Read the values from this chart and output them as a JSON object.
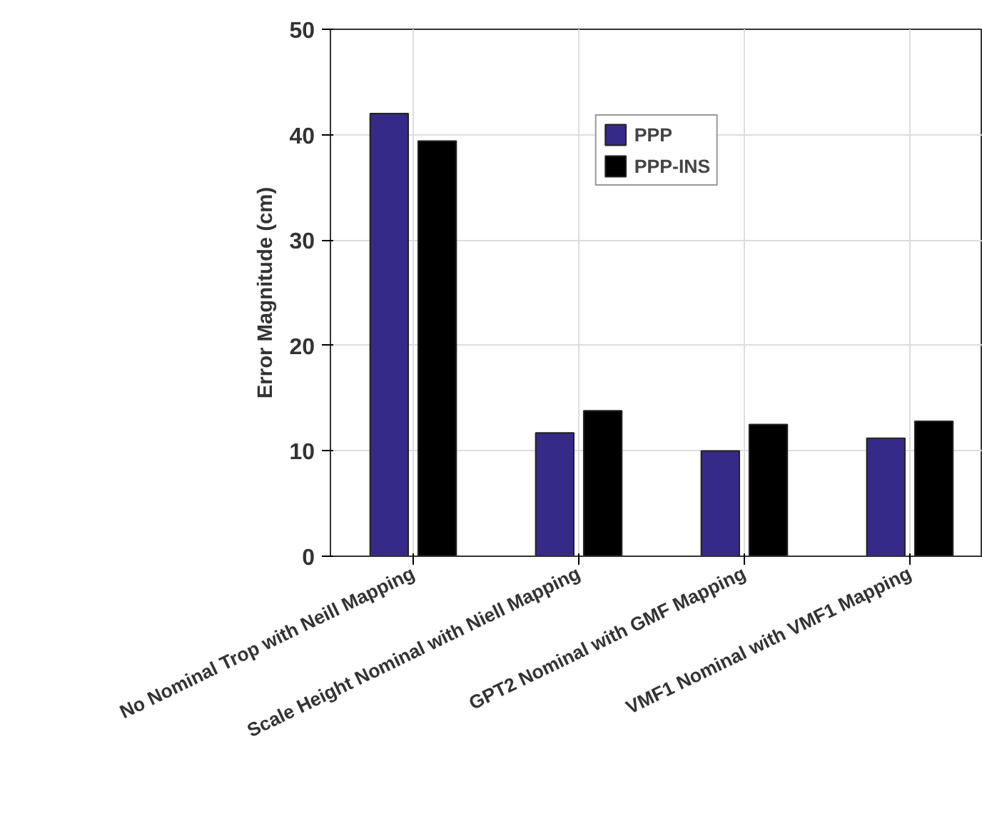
{
  "chart_data": {
    "type": "bar",
    "ylabel": "Error Magnitude (cm)",
    "categories": [
      "No Nominal Trop with Neill Mapping",
      "Scale Height Nominal with Niell Mapping",
      "GPT2 Nominal with GMF Mapping",
      "VMF1 Nominal with VMF1 Mapping"
    ],
    "series": [
      {
        "name": "PPP",
        "color": "#352a87",
        "values": [
          42,
          11.7,
          10,
          11.2
        ]
      },
      {
        "name": "PPP-INS",
        "color": "#000000",
        "values": [
          39.4,
          13.8,
          12.5,
          12.8
        ]
      }
    ],
    "ylim": [
      0,
      50
    ],
    "yticks": [
      0,
      10,
      20,
      30,
      40,
      50
    ],
    "grid": true,
    "legend": "top"
  }
}
